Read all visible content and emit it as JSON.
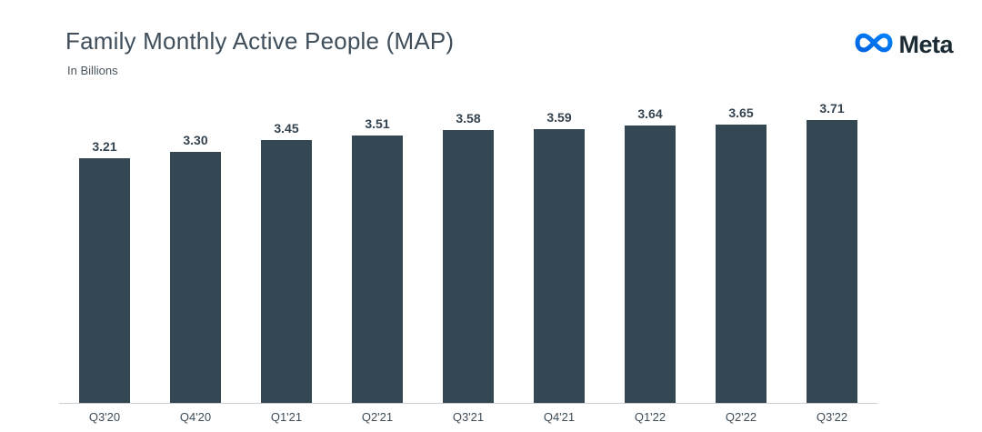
{
  "header": {
    "title": "Family Monthly Active People (MAP)",
    "subtitle": "In Billions",
    "brand": "Meta"
  },
  "colors": {
    "bar": "#344854",
    "title_text": "#3f4e5a",
    "axis_line": "#c9ced2",
    "brand_text": "#1c2b33",
    "logo_gradient_start": "#0064e0",
    "logo_gradient_end": "#0082fb"
  },
  "chart_data": {
    "type": "bar",
    "title": "Family Monthly Active People (MAP)",
    "xlabel": "",
    "ylabel": "In Billions",
    "categories": [
      "Q3'20",
      "Q4'20",
      "Q1'21",
      "Q2'21",
      "Q3'21",
      "Q4'21",
      "Q1'22",
      "Q2'22",
      "Q3'22"
    ],
    "values": [
      3.21,
      3.3,
      3.45,
      3.51,
      3.58,
      3.59,
      3.64,
      3.65,
      3.71
    ],
    "value_labels": [
      "3.21",
      "3.30",
      "3.45",
      "3.51",
      "3.58",
      "3.59",
      "3.64",
      "3.65",
      "3.71"
    ],
    "ylim": [
      0,
      4
    ],
    "grid": false,
    "legend": "none",
    "bar_color": "#344854",
    "data_labels_shown": true
  }
}
